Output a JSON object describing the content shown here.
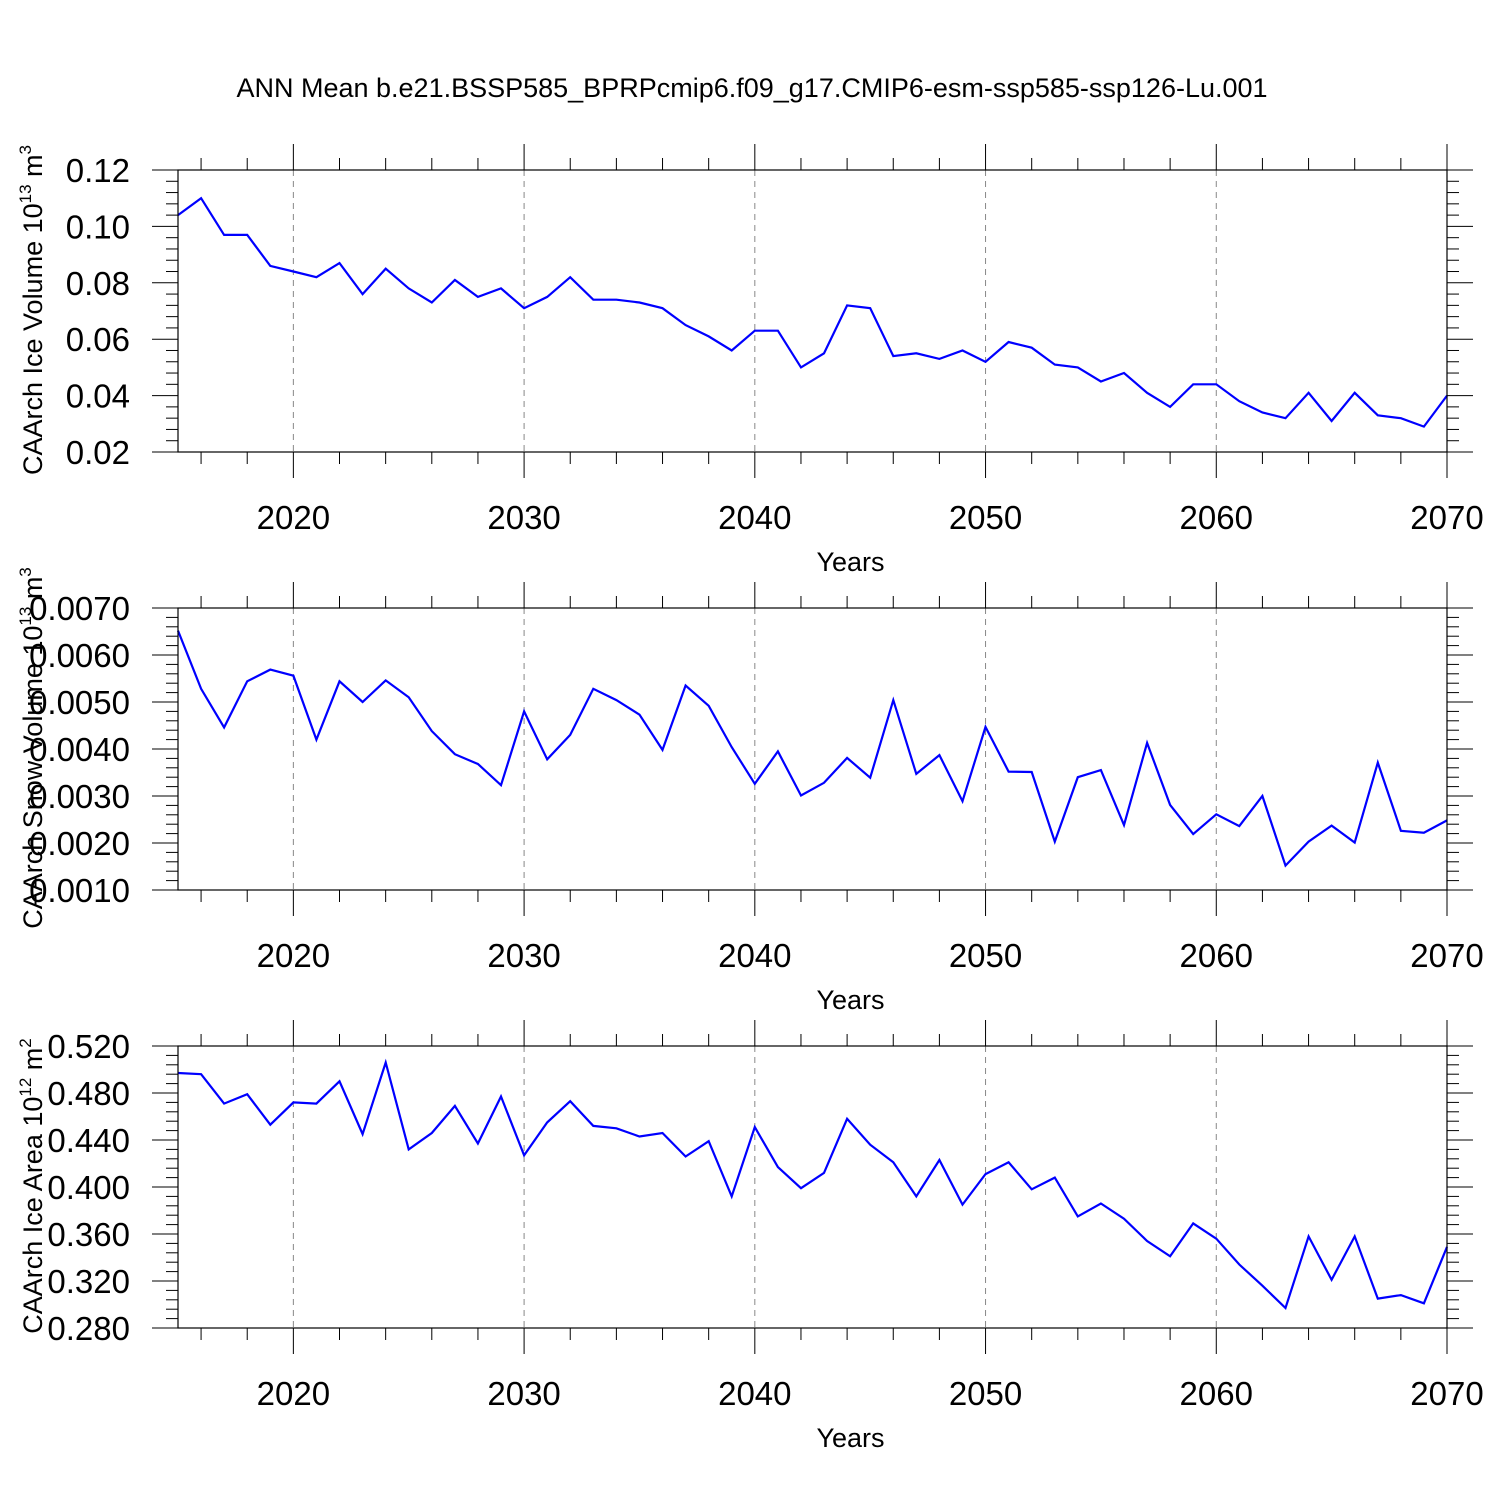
{
  "title": "ANN Mean b.e21.BSSP585_BPRPcmip6.f09_g17.CMIP6-esm-ssp585-ssp126-Lu.001",
  "chart_data": [
    {
      "type": "line",
      "title": "ANN Mean b.e21.BSSP585_BPRPcmip6.f09_g17.CMIP6-esm-ssp585-ssp126-Lu.001",
      "xlabel": "Years",
      "ylabel_text": "CAArch Ice Volume 10",
      "ylabel_exp": "13",
      "ylabel_unit": "m",
      "ylabel_unit_exp": "3",
      "xlim": [
        2015,
        2070
      ],
      "ylim": [
        0.02,
        0.12
      ],
      "xticks": [
        2020,
        2030,
        2040,
        2050,
        2060,
        2070
      ],
      "yticks": [
        "0.02",
        "0.04",
        "0.06",
        "0.08",
        "0.10",
        "0.12"
      ],
      "line_color": "#0000ff",
      "grid": "vertical dashed at major x ticks",
      "x": [
        2015,
        2016,
        2017,
        2018,
        2019,
        2020,
        2021,
        2022,
        2023,
        2024,
        2025,
        2026,
        2027,
        2028,
        2029,
        2030,
        2031,
        2032,
        2033,
        2034,
        2035,
        2036,
        2037,
        2038,
        2039,
        2040,
        2041,
        2042,
        2043,
        2044,
        2045,
        2046,
        2047,
        2048,
        2049,
        2050,
        2051,
        2052,
        2053,
        2054,
        2055,
        2056,
        2057,
        2058,
        2059,
        2060,
        2061,
        2062,
        2063,
        2064,
        2065,
        2066,
        2067,
        2068,
        2069,
        2070
      ],
      "values": [
        0.104,
        0.11,
        0.097,
        0.097,
        0.086,
        0.084,
        0.082,
        0.087,
        0.076,
        0.085,
        0.078,
        0.073,
        0.081,
        0.075,
        0.078,
        0.071,
        0.075,
        0.082,
        0.074,
        0.074,
        0.073,
        0.071,
        0.065,
        0.061,
        0.056,
        0.063,
        0.063,
        0.05,
        0.055,
        0.072,
        0.071,
        0.054,
        0.055,
        0.053,
        0.056,
        0.052,
        0.059,
        0.057,
        0.051,
        0.05,
        0.045,
        0.048,
        0.041,
        0.036,
        0.044,
        0.044,
        0.038,
        0.034,
        0.032,
        0.041,
        0.031,
        0.041,
        0.033,
        0.032,
        0.029,
        0.04
      ]
    },
    {
      "type": "line",
      "xlabel": "Years",
      "ylabel_text": "CAArch Snow Volume 10",
      "ylabel_exp": "13",
      "ylabel_unit": "m",
      "ylabel_unit_exp": "3",
      "xlim": [
        2015,
        2070
      ],
      "ylim": [
        0.001,
        0.007
      ],
      "xticks": [
        2020,
        2030,
        2040,
        2050,
        2060,
        2070
      ],
      "yticks": [
        "0.0010",
        "0.0020",
        "0.0030",
        "0.0040",
        "0.0050",
        "0.0060",
        "0.0070"
      ],
      "line_color": "#0000ff",
      "grid": "vertical dashed at major x ticks",
      "x": [
        2015,
        2016,
        2017,
        2018,
        2019,
        2020,
        2021,
        2022,
        2023,
        2024,
        2025,
        2026,
        2027,
        2028,
        2029,
        2030,
        2031,
        2032,
        2033,
        2034,
        2035,
        2036,
        2037,
        2038,
        2039,
        2040,
        2041,
        2042,
        2043,
        2044,
        2045,
        2046,
        2047,
        2048,
        2049,
        2050,
        2051,
        2052,
        2053,
        2054,
        2055,
        2056,
        2057,
        2058,
        2059,
        2060,
        2061,
        2062,
        2063,
        2064,
        2065,
        2066,
        2067,
        2068,
        2069,
        2070
      ],
      "values": [
        0.00652,
        0.00528,
        0.00446,
        0.00544,
        0.00569,
        0.00556,
        0.0042,
        0.00544,
        0.005,
        0.00546,
        0.0051,
        0.00438,
        0.00389,
        0.00368,
        0.00323,
        0.0048,
        0.00378,
        0.0043,
        0.00528,
        0.00504,
        0.00473,
        0.00398,
        0.00535,
        0.00492,
        0.00404,
        0.00326,
        0.00395,
        0.00301,
        0.00328,
        0.00381,
        0.00339,
        0.00504,
        0.00347,
        0.00387,
        0.00289,
        0.00447,
        0.00352,
        0.00351,
        0.00203,
        0.0034,
        0.00355,
        0.00238,
        0.00413,
        0.00281,
        0.00219,
        0.00261,
        0.00236,
        0.003,
        0.00152,
        0.00203,
        0.00237,
        0.00201,
        0.00371,
        0.00226,
        0.00222,
        0.00248
      ]
    },
    {
      "type": "line",
      "xlabel": "Years",
      "ylabel_text": "CAArch Ice Area 10",
      "ylabel_exp": "12",
      "ylabel_unit": "m",
      "ylabel_unit_exp": "2",
      "xlim": [
        2015,
        2070
      ],
      "ylim": [
        0.28,
        0.52
      ],
      "xticks": [
        2020,
        2030,
        2040,
        2050,
        2060,
        2070
      ],
      "yticks": [
        "0.280",
        "0.320",
        "0.360",
        "0.400",
        "0.440",
        "0.480",
        "0.520"
      ],
      "line_color": "#0000ff",
      "grid": "vertical dashed at major x ticks",
      "x": [
        2015,
        2016,
        2017,
        2018,
        2019,
        2020,
        2021,
        2022,
        2023,
        2024,
        2025,
        2026,
        2027,
        2028,
        2029,
        2030,
        2031,
        2032,
        2033,
        2034,
        2035,
        2036,
        2037,
        2038,
        2039,
        2040,
        2041,
        2042,
        2043,
        2044,
        2045,
        2046,
        2047,
        2048,
        2049,
        2050,
        2051,
        2052,
        2053,
        2054,
        2055,
        2056,
        2057,
        2058,
        2059,
        2060,
        2061,
        2062,
        2063,
        2064,
        2065,
        2066,
        2067,
        2068,
        2069,
        2070
      ],
      "values": [
        0.497,
        0.496,
        0.471,
        0.479,
        0.453,
        0.472,
        0.471,
        0.49,
        0.445,
        0.506,
        0.432,
        0.446,
        0.469,
        0.437,
        0.477,
        0.427,
        0.455,
        0.473,
        0.452,
        0.45,
        0.443,
        0.446,
        0.426,
        0.439,
        0.392,
        0.451,
        0.417,
        0.399,
        0.412,
        0.458,
        0.436,
        0.421,
        0.392,
        0.423,
        0.385,
        0.411,
        0.421,
        0.398,
        0.408,
        0.375,
        0.386,
        0.373,
        0.354,
        0.341,
        0.369,
        0.356,
        0.334,
        0.316,
        0.297,
        0.358,
        0.321,
        0.358,
        0.305,
        0.308,
        0.301,
        0.349
      ]
    }
  ]
}
